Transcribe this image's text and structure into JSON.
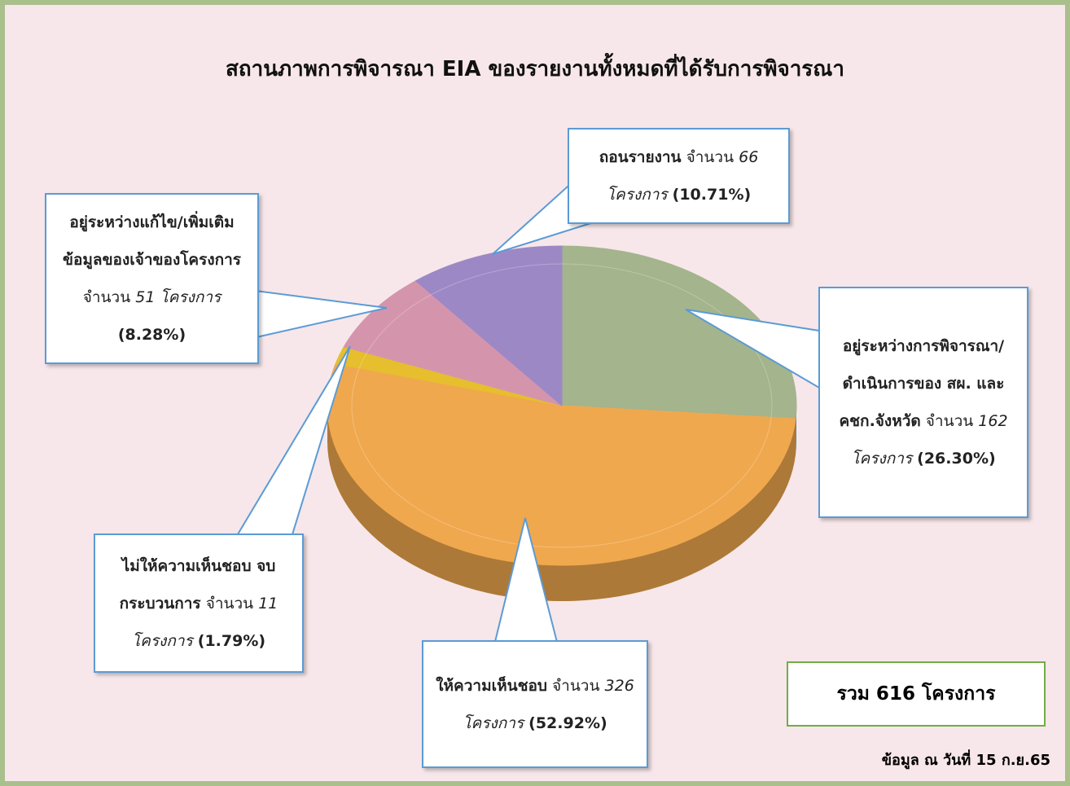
{
  "chart_data": {
    "type": "pie3d",
    "title": "สถานภาพการพิจารณา EIA ของรายงานทั้งหมดที่ได้รับการพิจารณา",
    "categories": [
      "อยู่ระหว่างการพิจารณา/ดำเนินการของ สผ. และ คชก.จังหวัด",
      "ให้ความเห็นชอบ",
      "ไม่ให้ความเห็นชอบ จบกระบวนการ",
      "อยู่ระหว่างแก้ไข/เพิ่มเติมข้อมูลของเจ้าของโครงการ",
      "ถอนรายงาน"
    ],
    "values": [
      162,
      326,
      11,
      51,
      66
    ],
    "value_labels": [
      "162 โครงการ",
      "326 โครงการ",
      "11 โครงการ",
      "51 โครงการ",
      "66 โครงการ"
    ],
    "percent_labels": [
      "(26.30%)",
      "(52.92%)",
      "(1.79%)",
      "(8.28%)",
      "(10.71%)"
    ],
    "count_prefix": "จำนวน",
    "colors": [
      "#a4b48c",
      "#f0a84e",
      "#e6be2e",
      "#d495ac",
      "#9d88c6"
    ],
    "total_label": "รวม 616 โครงการ",
    "note": "ข้อมูล ณ วันที่ 15 ก.ย.65"
  }
}
